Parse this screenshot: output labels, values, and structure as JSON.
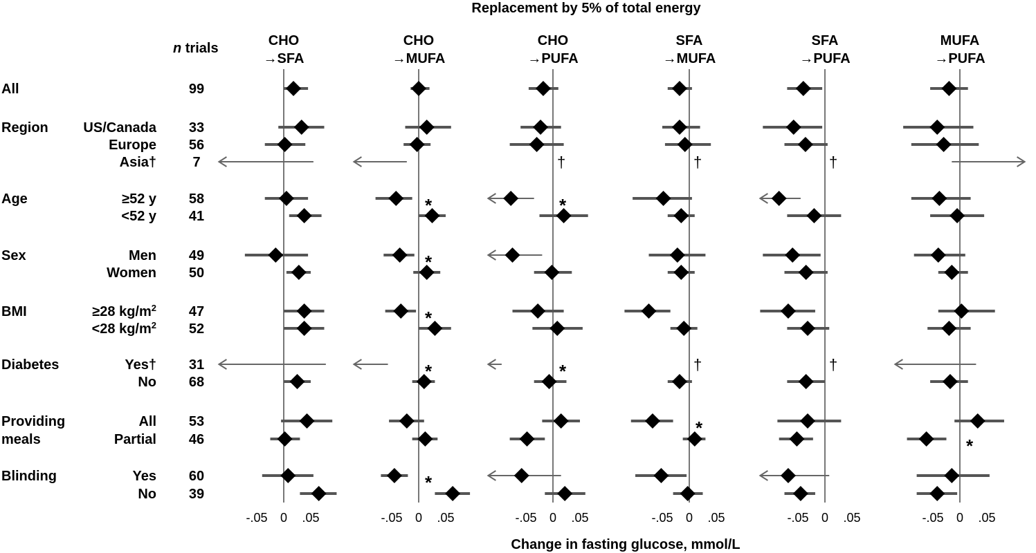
{
  "chart_data": {
    "type": "forest",
    "title": "Replacement by 5% of total energy",
    "xlabel": "Change in fasting glucose, mmol/L",
    "xlim": [
      -0.12,
      0.12
    ],
    "xticks": [
      -0.05,
      0,
      0.05
    ],
    "xtick_labels": [
      "-.05",
      "0",
      ".05"
    ],
    "n_header_prefix": "n",
    "n_header_suffix": " trials",
    "dagger_symbol": "†",
    "star_symbol": "*",
    "panels": [
      {
        "title_line1": "CHO",
        "title_line2": "→SFA"
      },
      {
        "title_line1": "CHO",
        "title_line2": "→MUFA"
      },
      {
        "title_line1": "CHO",
        "title_line2": "→PUFA"
      },
      {
        "title_line1": "SFA",
        "title_line2": "→MUFA"
      },
      {
        "title_line1": "SFA",
        "title_line2": "→PUFA"
      },
      {
        "title_line1": "MUFA",
        "title_line2": "→PUFA"
      }
    ],
    "groups": [
      {
        "label": "All",
        "rows": [
          {
            "sub": "",
            "n": "99",
            "est": [
              0.018,
              0,
              -0.018,
              -0.018,
              -0.04,
              -0.02
            ],
            "lo": [
              0.0,
              -0.015,
              -0.045,
              -0.04,
              -0.07,
              -0.055
            ],
            "hi": [
              0.045,
              0.02,
              0.01,
              0.005,
              -0.005,
              0.015
            ]
          }
        ]
      },
      {
        "label": "Region",
        "rows": [
          {
            "sub": "US/Canada",
            "n": "33",
            "est": [
              0.033,
              0.015,
              -0.023,
              -0.018,
              -0.058,
              -0.042
            ],
            "lo": [
              -0.01,
              -0.025,
              -0.06,
              -0.05,
              -0.115,
              -0.105
            ],
            "hi": [
              0.075,
              0.06,
              0.015,
              0.02,
              -0.005,
              0.025
            ]
          },
          {
            "sub": "Europe",
            "n": "56",
            "est": [
              0.002,
              -0.003,
              -0.03,
              -0.008,
              -0.036,
              -0.03
            ],
            "lo": [
              -0.035,
              -0.028,
              -0.08,
              -0.045,
              -0.075,
              -0.09
            ],
            "hi": [
              0.04,
              0.022,
              0.02,
              0.04,
              0.005,
              0.035
            ]
          },
          {
            "sub": "Asia†",
            "n": "7",
            "est": [
              null,
              null,
              null,
              null,
              null,
              null
            ],
            "lo": [
              -0.12,
              -0.12,
              null,
              null,
              null,
              -0.015
            ],
            "hi": [
              0.055,
              -0.022,
              null,
              null,
              null,
              0.12
            ],
            "arrow": [
              "left",
              "left",
              null,
              null,
              null,
              "right"
            ],
            "dagger": [
              false,
              false,
              true,
              true,
              true,
              false
            ]
          }
        ]
      },
      {
        "label": "Age",
        "rows": [
          {
            "sub": "≥52 y",
            "n": "58",
            "est": [
              0.005,
              -0.042,
              -0.078,
              -0.048,
              -0.085,
              -0.038
            ],
            "lo": [
              -0.035,
              -0.08,
              -0.12,
              -0.105,
              -0.12,
              -0.09
            ],
            "hi": [
              0.045,
              -0.012,
              -0.035,
              0.005,
              -0.045,
              0.02
            ],
            "arrow": [
              null,
              null,
              "left",
              null,
              "left",
              null
            ],
            "star": [
              false,
              true,
              true,
              false,
              false,
              false
            ]
          },
          {
            "sub": "<52 y",
            "n": "41",
            "est": [
              0.038,
              0.025,
              0.02,
              -0.015,
              -0.02,
              -0.005
            ],
            "lo": [
              0.01,
              0.0,
              -0.025,
              -0.04,
              -0.07,
              -0.055
            ],
            "hi": [
              0.07,
              0.05,
              0.065,
              0.01,
              0.03,
              0.045
            ]
          }
        ]
      },
      {
        "label": "Sex",
        "rows": [
          {
            "sub": "Men",
            "n": "49",
            "est": [
              -0.015,
              -0.035,
              -0.075,
              -0.022,
              -0.06,
              -0.04
            ],
            "lo": [
              -0.072,
              -0.065,
              -0.12,
              -0.075,
              -0.115,
              -0.085
            ],
            "hi": [
              0.045,
              -0.008,
              -0.02,
              0.03,
              -0.008,
              0.01
            ],
            "arrow": [
              null,
              null,
              "left",
              null,
              null,
              null
            ],
            "star": [
              false,
              true,
              false,
              false,
              false,
              false
            ]
          },
          {
            "sub": "Women",
            "n": "50",
            "est": [
              0.028,
              0.015,
              -0.002,
              -0.015,
              -0.035,
              -0.015
            ],
            "lo": [
              0.005,
              -0.01,
              -0.035,
              -0.04,
              -0.075,
              -0.04
            ],
            "hi": [
              0.05,
              0.04,
              0.035,
              0.01,
              0.005,
              0.015
            ]
          }
        ]
      },
      {
        "label": "BMI",
        "rows": [
          {
            "sub": "≥28 kg/m",
            "sup": "2",
            "n": "47",
            "est": [
              0.038,
              -0.033,
              -0.028,
              -0.075,
              -0.068,
              0.003
            ],
            "lo": [
              0.0,
              -0.062,
              -0.075,
              -0.12,
              -0.12,
              -0.04
            ],
            "hi": [
              0.075,
              -0.005,
              0.02,
              -0.035,
              -0.018,
              0.065
            ],
            "star": [
              false,
              true,
              false,
              false,
              false,
              false
            ]
          },
          {
            "sub": "<28 kg/m",
            "sup": "2",
            "n": "52",
            "est": [
              0.038,
              0.03,
              0.008,
              -0.01,
              -0.032,
              -0.02
            ],
            "lo": [
              0.0,
              0.0,
              -0.038,
              -0.035,
              -0.07,
              -0.06
            ],
            "hi": [
              0.075,
              0.06,
              0.055,
              0.015,
              0.008,
              0.02
            ]
          }
        ]
      },
      {
        "label": "Diabetes",
        "rows": [
          {
            "sub": "Yes†",
            "n": "31",
            "est": [
              null,
              null,
              null,
              null,
              null,
              null
            ],
            "lo": [
              -0.12,
              -0.12,
              -0.12,
              null,
              null,
              -0.12
            ],
            "hi": [
              0.078,
              -0.057,
              -0.095,
              null,
              null,
              0.03
            ],
            "arrow": [
              "left",
              "left",
              "left",
              null,
              null,
              "left"
            ],
            "star": [
              false,
              true,
              true,
              false,
              false,
              false
            ],
            "dagger": [
              false,
              false,
              false,
              true,
              true,
              false
            ]
          },
          {
            "sub": "No",
            "n": "68",
            "est": [
              0.025,
              0.01,
              -0.007,
              -0.018,
              -0.035,
              -0.018
            ],
            "lo": [
              0.0,
              -0.012,
              -0.035,
              -0.04,
              -0.07,
              -0.055
            ],
            "hi": [
              0.05,
              0.03,
              0.025,
              0.005,
              0.0,
              0.015
            ]
          }
        ]
      },
      {
        "label": "Providing",
        "label2": "meals",
        "rows": [
          {
            "sub": "All",
            "n": "53",
            "est": [
              0.043,
              -0.022,
              0.015,
              -0.068,
              -0.032,
              0.033
            ],
            "lo": [
              -0.005,
              -0.055,
              -0.02,
              -0.108,
              -0.088,
              -0.01
            ],
            "hi": [
              0.09,
              0.01,
              0.05,
              -0.03,
              0.03,
              0.082
            ],
            "star": [
              false,
              false,
              false,
              true,
              false,
              false
            ]
          },
          {
            "sub": "Partial",
            "n": "46",
            "est": [
              0.002,
              0.012,
              -0.048,
              0.01,
              -0.052,
              -0.062
            ],
            "lo": [
              -0.025,
              -0.012,
              -0.08,
              -0.012,
              -0.085,
              -0.098
            ],
            "hi": [
              0.03,
              0.035,
              -0.015,
              0.03,
              -0.022,
              -0.025
            ],
            "star": [
              false,
              false,
              false,
              false,
              false,
              true
            ]
          }
        ]
      },
      {
        "label": "Blinding",
        "rows": [
          {
            "sub": "Yes",
            "n": "60",
            "est": [
              0.008,
              -0.045,
              -0.058,
              -0.052,
              -0.068,
              -0.015
            ],
            "lo": [
              -0.04,
              -0.07,
              -0.12,
              -0.1,
              -0.12,
              -0.08
            ],
            "hi": [
              0.055,
              -0.02,
              0.015,
              -0.005,
              0.008,
              0.055
            ],
            "arrow": [
              null,
              null,
              "left",
              null,
              "left",
              null
            ],
            "star": [
              false,
              true,
              false,
              false,
              false,
              false
            ]
          },
          {
            "sub": "No",
            "n": "39",
            "est": [
              0.065,
              0.063,
              0.022,
              -0.003,
              -0.045,
              -0.042
            ],
            "lo": [
              0.03,
              0.03,
              -0.015,
              -0.03,
              -0.075,
              -0.08
            ],
            "hi": [
              0.098,
              0.095,
              0.06,
              0.025,
              -0.018,
              -0.005
            ]
          }
        ]
      }
    ]
  }
}
